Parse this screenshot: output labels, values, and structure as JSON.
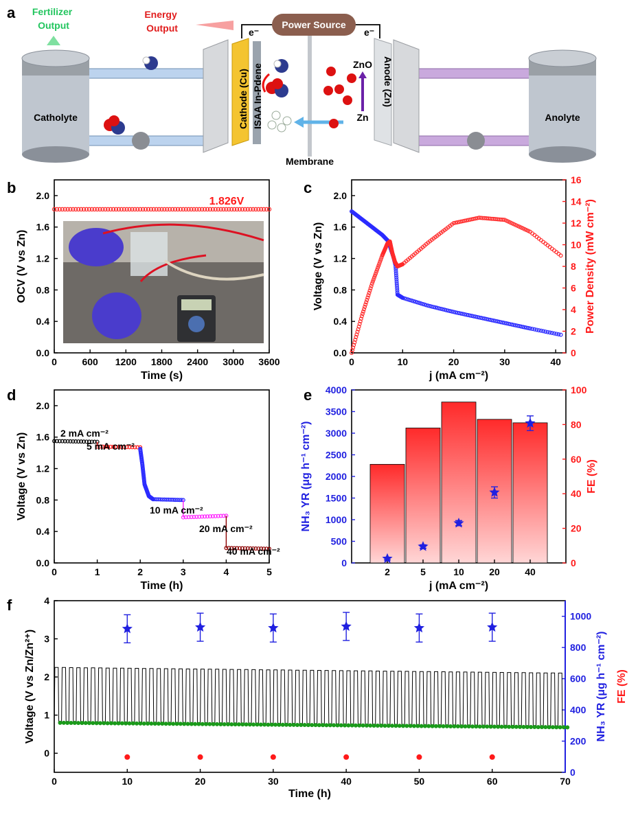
{
  "panels": {
    "a": "a",
    "b": "b",
    "c": "c",
    "d": "d",
    "e": "e",
    "f": "f"
  },
  "diagram": {
    "power_source": "Power Source",
    "energy_output": "Energy\nOutput",
    "fertilizer_output": "Fertilizer\nOutput",
    "catholyte": "Catholyte",
    "anolyte": "Anolyte",
    "cathode": "Cathode (Cu)",
    "isaa": "ISAA In-Pdene",
    "anode": "Anode (Zn)",
    "zno": "ZnO",
    "zn": "Zn",
    "membrane": "Membrane",
    "e_left": "e⁻",
    "e_right": "e⁻",
    "colors": {
      "fertilizer": "#22c55e",
      "energy": "#e11d1d",
      "power_source": "#8b5e4e",
      "anode_arrow": "#6b21a8",
      "ion_arrow": "#60b3e8"
    }
  },
  "chart_data": [
    {
      "id": "b",
      "type": "line",
      "xlabel": "Time (s)",
      "ylabel": "OCV (V vs Zn)",
      "xlim": [
        0,
        3600
      ],
      "ylim": [
        0.0,
        2.2
      ],
      "xticks": [
        "0",
        "600",
        "1200",
        "1800",
        "2400",
        "3000",
        "3600"
      ],
      "yticks": [
        "0.0",
        "0.4",
        "0.8",
        "1.2",
        "1.6",
        "2.0"
      ],
      "annotation": "1.826V",
      "series": [
        {
          "color": "#ff2a2a",
          "x": [
            0,
            3600
          ],
          "y": [
            1.826,
            1.826
          ],
          "marker": "open-circle"
        }
      ]
    },
    {
      "id": "c",
      "type": "line",
      "xlabel": "j (mA cm⁻²)",
      "ylabel": "Voltage (V vs Zn)",
      "y2label": "Power Density (mW cm⁻²)",
      "xlim": [
        0,
        42
      ],
      "ylim": [
        0.0,
        2.2
      ],
      "y2lim": [
        0,
        16
      ],
      "xticks": [
        "0",
        "10",
        "20",
        "30",
        "40"
      ],
      "yticks": [
        "0.0",
        "0.4",
        "0.8",
        "1.2",
        "1.6",
        "2.0"
      ],
      "y2ticks": [
        "0",
        "2",
        "4",
        "6",
        "8",
        "10",
        "12",
        "14",
        "16"
      ],
      "series": [
        {
          "axis": "left",
          "color": "#2b2bff",
          "x": [
            0,
            2,
            4,
            6,
            7.2,
            7.8,
            8.2,
            8.6,
            9,
            10,
            15,
            20,
            25,
            30,
            35,
            41
          ],
          "y": [
            1.8,
            1.7,
            1.6,
            1.5,
            1.42,
            1.3,
            1.22,
            1.12,
            0.74,
            0.7,
            0.6,
            0.52,
            0.45,
            0.38,
            0.31,
            0.23
          ]
        },
        {
          "axis": "right",
          "color": "#ff2a2a",
          "x": [
            0,
            2,
            4,
            6,
            7,
            7.5,
            8,
            8.5,
            9,
            10,
            15,
            20,
            25,
            30,
            35,
            41
          ],
          "y": [
            0,
            3.4,
            6.4,
            9.0,
            10.1,
            10.3,
            9.2,
            8.4,
            8.0,
            8.2,
            10.2,
            12.0,
            12.5,
            12.3,
            11.2,
            9.0
          ]
        }
      ]
    },
    {
      "id": "d",
      "type": "line",
      "xlabel": "Time (h)",
      "ylabel": "Voltage (V vs Zn)",
      "xlim": [
        0,
        5
      ],
      "ylim": [
        0.0,
        2.2
      ],
      "xticks": [
        "0",
        "1",
        "2",
        "3",
        "4",
        "5"
      ],
      "yticks": [
        "0.0",
        "0.4",
        "0.8",
        "1.2",
        "1.6",
        "2.0"
      ],
      "step_labels": [
        "2 mA cm⁻²",
        "5 mA cm⁻²",
        "10 mA cm⁻²",
        "20 mA cm⁻²",
        "40 mA cm⁻²"
      ],
      "series": [
        {
          "color": "#000000",
          "x": [
            0,
            1
          ],
          "y": [
            1.55,
            1.54
          ]
        },
        {
          "color": "#ff1a1a",
          "x": [
            1,
            2
          ],
          "y": [
            1.48,
            1.47
          ]
        },
        {
          "color": "#2b2bff",
          "x": [
            2,
            2.05,
            2.1,
            2.2,
            2.3,
            3
          ],
          "y": [
            1.45,
            1.25,
            1.0,
            0.85,
            0.81,
            0.8
          ]
        },
        {
          "color": "#ff22ff",
          "x": [
            3,
            4
          ],
          "y": [
            0.58,
            0.6
          ]
        },
        {
          "color": "#8b0000",
          "x": [
            4,
            5
          ],
          "y": [
            0.19,
            0.18
          ]
        }
      ]
    },
    {
      "id": "e",
      "type": "bar",
      "xlabel": "j (mA cm⁻²)",
      "ylabel": "NH₃ YR (μg h⁻¹ cm⁻²)",
      "y2label": "FE (%)",
      "categories": [
        "2",
        "5",
        "10",
        "20",
        "40"
      ],
      "ylim": [
        0,
        4000
      ],
      "y2lim": [
        0,
        100
      ],
      "yticks": [
        "0",
        "500",
        "1000",
        "1500",
        "2000",
        "2500",
        "3000",
        "3500",
        "4000"
      ],
      "y2ticks": [
        "0",
        "20",
        "40",
        "60",
        "80",
        "100"
      ],
      "series": [
        {
          "name": "FE",
          "axis": "right",
          "color": "#ff3b3b",
          "values": [
            57,
            78,
            93,
            83,
            81
          ]
        },
        {
          "name": "NH3 YR",
          "axis": "left",
          "color": "#2020e0",
          "values": [
            100,
            380,
            920,
            1630,
            3230
          ],
          "errors": [
            30,
            40,
            60,
            130,
            170
          ]
        }
      ]
    },
    {
      "id": "f",
      "type": "line",
      "xlabel": "Time (h)",
      "ylabel": "Voltage (V vs Zn/Zn²⁺)",
      "y2label_blue": "NH₃ YR (μg h⁻¹ cm⁻²)",
      "y2label_red": "FE (%)",
      "xlim": [
        0,
        70
      ],
      "ylim": [
        -0.5,
        4.0
      ],
      "y2lim": [
        0,
        1100
      ],
      "xticks": [
        "0",
        "10",
        "20",
        "30",
        "40",
        "50",
        "60",
        "70"
      ],
      "yticks": [
        "0",
        "1",
        "2",
        "3",
        "4"
      ],
      "y2ticks": [
        "0",
        "200",
        "400",
        "600",
        "800",
        "1000"
      ],
      "cycling": {
        "high_v_start": 2.25,
        "high_v_end": 2.1,
        "low_v_start": 0.8,
        "low_v_end": 0.68,
        "period_h": 1.0,
        "line": "#000000",
        "low_marker": "#1a9a1a"
      },
      "series": [
        {
          "name": "NH3 YR",
          "color": "#2020e0",
          "x": [
            10,
            20,
            30,
            40,
            50,
            60
          ],
          "y": [
            920,
            930,
            925,
            935,
            925,
            930
          ],
          "errors": [
            90,
            90,
            90,
            90,
            90,
            90
          ]
        },
        {
          "name": "FE",
          "color": "#ff1a1a",
          "x": [
            10,
            20,
            30,
            40,
            50,
            60
          ],
          "y": [
            -0.1,
            -0.1,
            -0.1,
            -0.1,
            -0.1,
            -0.1
          ]
        }
      ]
    }
  ]
}
